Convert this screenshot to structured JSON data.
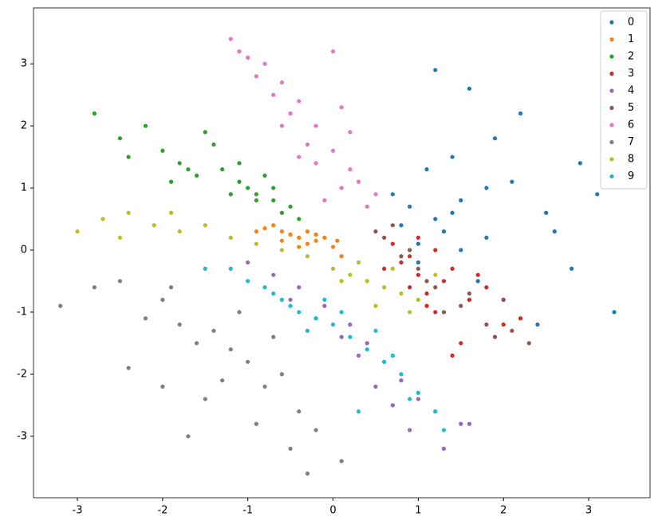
{
  "chart_data": {
    "type": "scatter",
    "xlim": [
      -3.515,
      3.72
    ],
    "ylim": [
      -3.99,
      3.9
    ],
    "xticks": [
      -3,
      -2,
      -1,
      0,
      1,
      2,
      3
    ],
    "yticks": [
      -3,
      -2,
      -1,
      0,
      1,
      2,
      3
    ],
    "grid": false,
    "legend": "upper right",
    "series": [
      {
        "name": "0",
        "color": "#1f77b4",
        "x": [
          1.2,
          1.5,
          1.8,
          2.1,
          1.0,
          1.4,
          2.5,
          2.8,
          3.1,
          1.7,
          1.3,
          0.9,
          2.2,
          1.9,
          1.1,
          1.6,
          2.4,
          0.8,
          3.3,
          2.0,
          1.5,
          1.2,
          2.6,
          1.8,
          1.4,
          0.7,
          2.9,
          1.0
        ],
        "values": [
          0.5,
          0.8,
          0.2,
          1.1,
          0.1,
          1.5,
          0.6,
          -0.3,
          0.9,
          -0.5,
          0.3,
          0.7,
          2.2,
          1.8,
          1.3,
          2.6,
          -1.2,
          0.4,
          -1.0,
          -0.8,
          0.0,
          2.9,
          0.3,
          1.0,
          0.6,
          0.9,
          1.4,
          -0.2
        ]
      },
      {
        "name": "1",
        "color": "#ff7f0e",
        "x": [
          -0.8,
          -0.6,
          -0.4,
          -0.2,
          0.0,
          -0.5,
          -0.3,
          -0.7,
          -0.1,
          0.1,
          -0.9,
          -0.4,
          -0.2,
          -0.6,
          -0.3,
          0.05
        ],
        "values": [
          0.35,
          0.3,
          0.2,
          0.15,
          0.05,
          0.25,
          0.1,
          0.4,
          0.2,
          -0.1,
          0.3,
          0.05,
          0.25,
          0.15,
          0.3,
          0.15
        ]
      },
      {
        "name": "2",
        "color": "#2ca02c",
        "x": [
          -2.5,
          -2.2,
          -2.0,
          -1.8,
          -1.5,
          -1.3,
          -1.1,
          -0.9,
          -0.7,
          -0.5,
          -1.0,
          -0.8,
          -1.2,
          -0.6,
          -1.6,
          -2.8,
          -1.9,
          -1.4,
          -0.4,
          -2.4,
          -0.9,
          -1.1,
          -0.7,
          -1.7
        ],
        "values": [
          1.8,
          2.0,
          1.6,
          1.4,
          1.9,
          1.3,
          1.1,
          0.9,
          0.8,
          0.7,
          1.0,
          1.2,
          0.9,
          0.6,
          1.2,
          2.2,
          1.1,
          1.7,
          0.5,
          1.5,
          0.8,
          1.4,
          1.0,
          1.3
        ]
      },
      {
        "name": "3",
        "color": "#d62728",
        "x": [
          0.8,
          1.0,
          1.2,
          0.9,
          1.4,
          1.6,
          1.1,
          0.7,
          1.3,
          1.8,
          2.0,
          1.5,
          0.6,
          1.0,
          1.2,
          1.7,
          0.9,
          2.2,
          1.4,
          1.1
        ],
        "values": [
          -0.2,
          -0.4,
          0.0,
          -0.6,
          -0.3,
          -0.8,
          -0.9,
          0.1,
          -0.5,
          -0.6,
          -1.2,
          -1.5,
          -0.3,
          0.2,
          -1.0,
          -0.4,
          -0.1,
          -1.1,
          -1.7,
          -0.7
        ]
      },
      {
        "name": "4",
        "color": "#9467bd",
        "x": [
          -1.0,
          -0.7,
          -0.4,
          -0.1,
          0.2,
          0.4,
          0.6,
          0.8,
          1.0,
          1.2,
          0.5,
          0.3,
          -0.2,
          0.9,
          1.5,
          1.3,
          0.1,
          0.7,
          -0.5,
          1.6
        ],
        "values": [
          -0.2,
          -0.4,
          -0.6,
          -0.9,
          -1.2,
          -1.5,
          -1.8,
          -2.1,
          -2.4,
          -2.6,
          -2.2,
          -1.7,
          -1.1,
          -2.9,
          -2.8,
          -3.2,
          -1.4,
          -2.5,
          -0.8,
          -2.8
        ]
      },
      {
        "name": "5",
        "color": "#8c564b",
        "x": [
          0.6,
          0.8,
          1.0,
          0.7,
          1.2,
          1.5,
          1.8,
          2.0,
          2.3,
          0.9,
          1.1,
          1.6,
          1.9,
          0.5,
          1.3,
          2.1
        ],
        "values": [
          0.2,
          -0.1,
          -0.3,
          0.4,
          -0.6,
          -0.9,
          -1.2,
          -0.8,
          -1.5,
          0.0,
          -0.5,
          -0.7,
          -1.4,
          0.3,
          -1.0,
          -1.3
        ]
      },
      {
        "name": "6",
        "color": "#e377c2",
        "x": [
          -1.2,
          -1.0,
          -0.8,
          -0.6,
          -0.4,
          -0.2,
          0.0,
          0.2,
          0.1,
          -0.1,
          -0.3,
          -0.5,
          -0.7,
          0.3,
          0.4,
          -0.9,
          -1.1,
          -0.2,
          0.0,
          0.2,
          -0.4,
          0.1,
          -0.6,
          0.5
        ],
        "values": [
          3.4,
          3.1,
          3.0,
          2.7,
          2.4,
          2.0,
          1.6,
          1.3,
          1.0,
          0.8,
          1.7,
          2.2,
          2.5,
          1.1,
          0.7,
          2.8,
          3.2,
          1.4,
          3.2,
          1.9,
          1.5,
          2.3,
          2.0,
          0.9
        ]
      },
      {
        "name": "7",
        "color": "#7f7f7f",
        "x": [
          -3.2,
          -2.8,
          -2.5,
          -2.2,
          -2.0,
          -1.8,
          -1.6,
          -1.4,
          -1.2,
          -1.0,
          -0.8,
          -0.6,
          -0.4,
          -1.5,
          -1.1,
          -0.9,
          -1.7,
          -2.4,
          -0.5,
          -0.3,
          -1.3,
          -2.0,
          -0.7,
          0.1,
          -0.2,
          -1.9
        ],
        "values": [
          -0.9,
          -0.6,
          -0.5,
          -1.1,
          -0.8,
          -1.2,
          -1.5,
          -1.3,
          -1.6,
          -1.8,
          -2.2,
          -2.0,
          -2.6,
          -2.4,
          -1.0,
          -2.8,
          -3.0,
          -1.9,
          -3.2,
          -3.6,
          -2.1,
          -2.2,
          -1.4,
          -3.4,
          -2.9,
          -0.6
        ]
      },
      {
        "name": "8",
        "color": "#bcbd22",
        "x": [
          -3.0,
          -2.7,
          -2.4,
          -2.1,
          -1.8,
          -1.5,
          -1.2,
          -0.9,
          -0.6,
          -0.3,
          0.0,
          0.2,
          0.4,
          0.6,
          0.8,
          1.0,
          0.3,
          0.5,
          0.1,
          0.7,
          -2.5,
          -1.9,
          1.2,
          0.9
        ],
        "values": [
          0.3,
          0.5,
          0.6,
          0.4,
          0.3,
          0.4,
          0.2,
          0.1,
          0.0,
          -0.1,
          -0.3,
          -0.4,
          -0.5,
          -0.6,
          -0.7,
          -0.8,
          -0.2,
          -0.9,
          -0.5,
          -0.3,
          0.2,
          0.6,
          -0.4,
          -1.0
        ]
      },
      {
        "name": "9",
        "color": "#17becf",
        "x": [
          -1.5,
          -1.2,
          -1.0,
          -0.8,
          -0.6,
          -0.4,
          -0.2,
          0.0,
          0.2,
          0.4,
          0.6,
          0.8,
          1.0,
          1.2,
          -0.5,
          -0.3,
          0.1,
          0.5,
          -0.7,
          0.3,
          0.9,
          1.3,
          -0.1,
          0.7
        ],
        "values": [
          -0.3,
          -0.3,
          -0.5,
          -0.6,
          -0.8,
          -1.0,
          -1.1,
          -1.2,
          -1.4,
          -1.6,
          -1.8,
          -2.0,
          -2.3,
          -2.6,
          -0.9,
          -1.3,
          -1.0,
          -1.3,
          -0.7,
          -2.6,
          -2.4,
          -2.9,
          -0.8,
          -1.7
        ]
      }
    ]
  }
}
